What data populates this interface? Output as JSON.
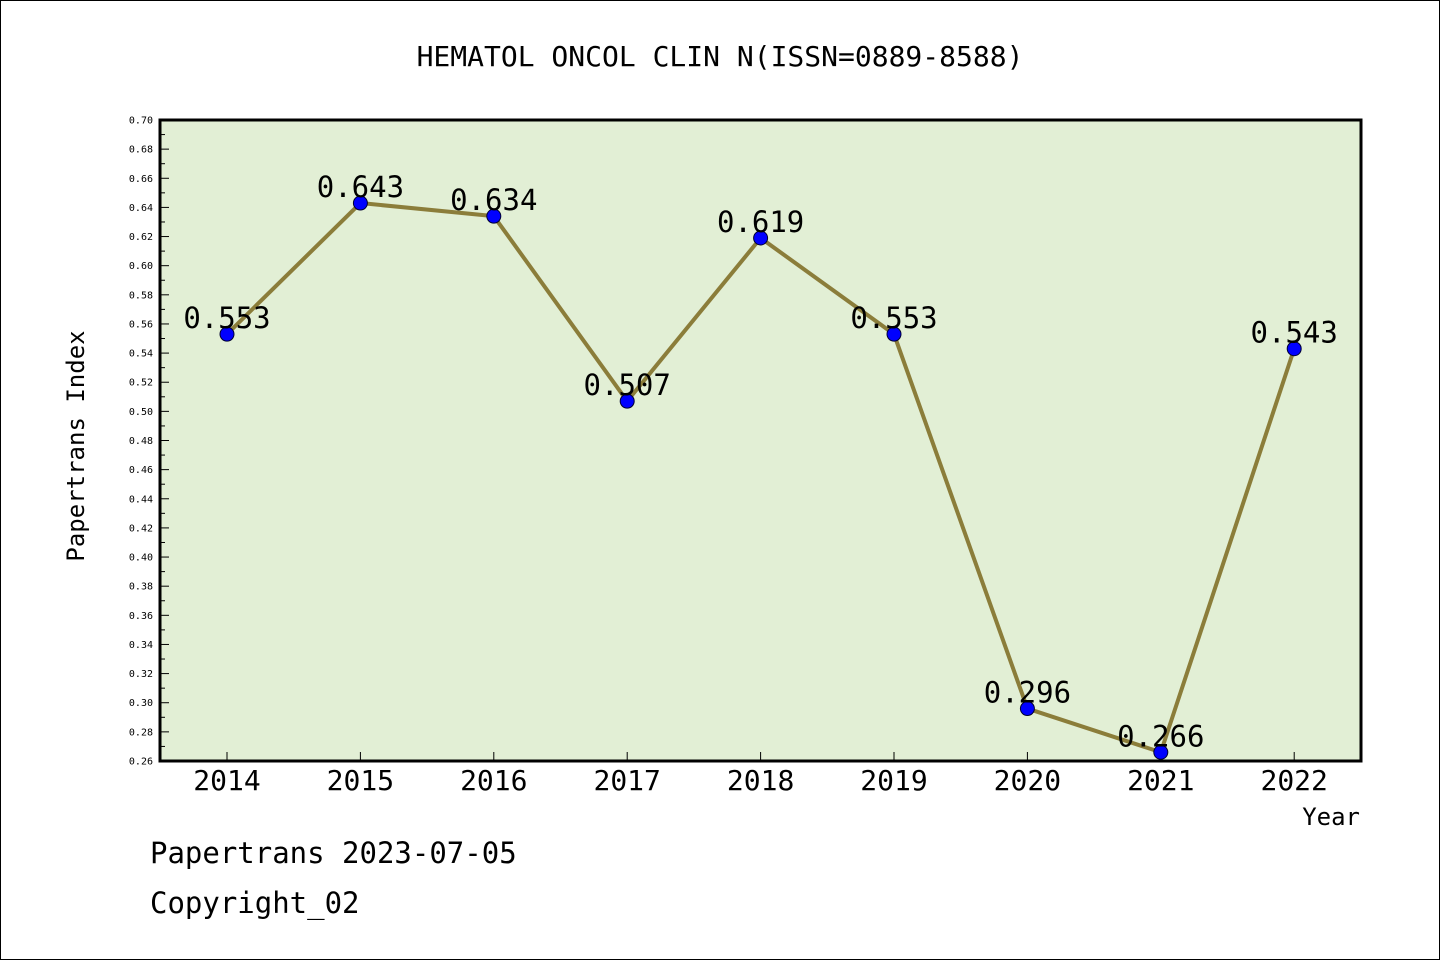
{
  "chart_data": {
    "type": "line",
    "title": "HEMATOL ONCOL CLIN N(ISSN=0889-8588)",
    "xlabel": "Year",
    "ylabel": "Papertrans Index",
    "categories": [
      "2014",
      "2015",
      "2016",
      "2017",
      "2018",
      "2019",
      "2020",
      "2021",
      "2022"
    ],
    "values": [
      0.553,
      0.643,
      0.634,
      0.507,
      0.619,
      0.553,
      0.296,
      0.266,
      0.543
    ],
    "data_labels": [
      "0.553",
      "0.643",
      "0.634",
      "0.507",
      "0.619",
      "0.553",
      "0.296",
      "0.266",
      "0.543"
    ],
    "ylim": [
      0.26,
      0.7
    ],
    "yticks": [
      "0.26",
      "0.28",
      "0.30",
      "0.32",
      "0.34",
      "0.36",
      "0.38",
      "0.40",
      "0.42",
      "0.44",
      "0.46",
      "0.48",
      "0.50",
      "0.52",
      "0.54",
      "0.56",
      "0.58",
      "0.60",
      "0.62",
      "0.64",
      "0.66",
      "0.68",
      "0.70"
    ],
    "grid": false,
    "colors": {
      "plot_background": "#e2efd5",
      "line": "#8b7d3a",
      "marker": "#0000ff"
    }
  },
  "footer": {
    "line1": "Papertrans 2023-07-05",
    "line2": "Copyright_02"
  }
}
